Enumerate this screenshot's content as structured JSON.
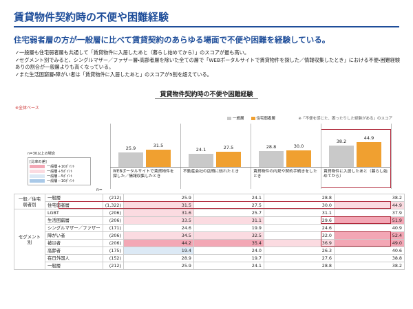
{
  "header": {
    "title": "賃貸物件契約時の不便や困難経験",
    "subtitle": "住宅弱者層の方が一般層に比べて賃貸契約のあらゆる場面で不便や困難を経験している。"
  },
  "bullets": [
    "一般層も住宅弱者層も共通して「賃貸物件に入居したあと（暮らし始めてから）」のスコアが最も高い。",
    "セグメント別でみると、シングルマザー／ファザー層・高齢者層を除いた全ての層で「WEBポータルサイトで賃貸物件を探した／情報収集したとき」における不便・困難経験ありの割合が一般層よりも高くなっている。",
    "また生活困窮層・障がい者は「賃貸物件に入居したあと」のスコアが5割を超えている。"
  ],
  "notes": {
    "base": "※全体ベース",
    "score": "※「不便を感じた、困ったりした経験がある」のスコア"
  },
  "chart_data": {
    "type": "bar",
    "title": "賃貸物件契約時の不便や困難経験",
    "categories": [
      "WEBポータルサイトで賃貸物件を探した／情報収集したとき",
      "不動産会社の店頭に訪れたとき",
      "賃貸物件の内見や契約手続きをしたとき",
      "賃貸物件に入居したあと（暮らし始めてから）"
    ],
    "series": [
      {
        "name": "一般層",
        "color": "#c9c9c9",
        "values": [
          25.9,
          24.1,
          28.8,
          38.2
        ],
        "value_labels": [
          "25.9",
          "24.1",
          "28.8",
          "38.2"
        ]
      },
      {
        "name": "住宅弱者層",
        "color": "#f0a030",
        "values": [
          31.5,
          27.5,
          30.0,
          44.9
        ],
        "value_labels": [
          "31.5",
          "27.5",
          "30.0",
          "44.9"
        ]
      }
    ]
  },
  "diff_legend": {
    "caption": "n=30以上の場合",
    "bracket": "[比率の差]",
    "items": [
      "一般層＋10ﾎﾟｲﾝﾄ",
      "一般層＋5ﾎﾟｲﾝﾄ",
      "一般層－5ﾎﾟｲﾝﾄ",
      "一般層－10ﾎﾟｲﾝﾄ"
    ]
  },
  "table": {
    "n_header": "n=",
    "groups": [
      {
        "label": "一般／住宅弱者別",
        "rows": [
          {
            "label": "一般層",
            "n": "(212)",
            "values": [
              "25.9",
              "24.1",
              "28.8",
              "38.2"
            ]
          },
          {
            "label": "住宅弱者層",
            "n": "(1,322)",
            "values": [
              "31.5",
              "27.5",
              "30.0",
              "44.9"
            ]
          }
        ]
      },
      {
        "label": "セグメント別",
        "rows": [
          {
            "label": "LGBT",
            "n": "(206)",
            "values": [
              "31.6",
              "25.7",
              "31.1",
              "37.9"
            ]
          },
          {
            "label": "生活困窮層",
            "n": "(206)",
            "values": [
              "33.5",
              "31.1",
              "29.6",
              "51.9"
            ]
          },
          {
            "label": "シングルマザー／ファザー",
            "n": "(171)",
            "values": [
              "24.6",
              "19.9",
              "24.6",
              "40.9"
            ]
          },
          {
            "label": "障がい者",
            "n": "(206)",
            "values": [
              "34.5",
              "32.5",
              "32.0",
              "52.4"
            ]
          },
          {
            "label": "被災者",
            "n": "(206)",
            "values": [
              "44.2",
              "35.4",
              "36.9",
              "49.0"
            ]
          },
          {
            "label": "高齢者",
            "n": "(175)",
            "values": [
              "19.4",
              "24.0",
              "26.3",
              "40.6"
            ]
          },
          {
            "label": "在日外国人",
            "n": "(152)",
            "values": [
              "28.9",
              "19.7",
              "27.6",
              "38.8"
            ]
          },
          {
            "label": "一般層",
            "n": "(212)",
            "values": [
              "25.9",
              "24.1",
              "28.8",
              "38.2"
            ]
          }
        ]
      }
    ]
  }
}
